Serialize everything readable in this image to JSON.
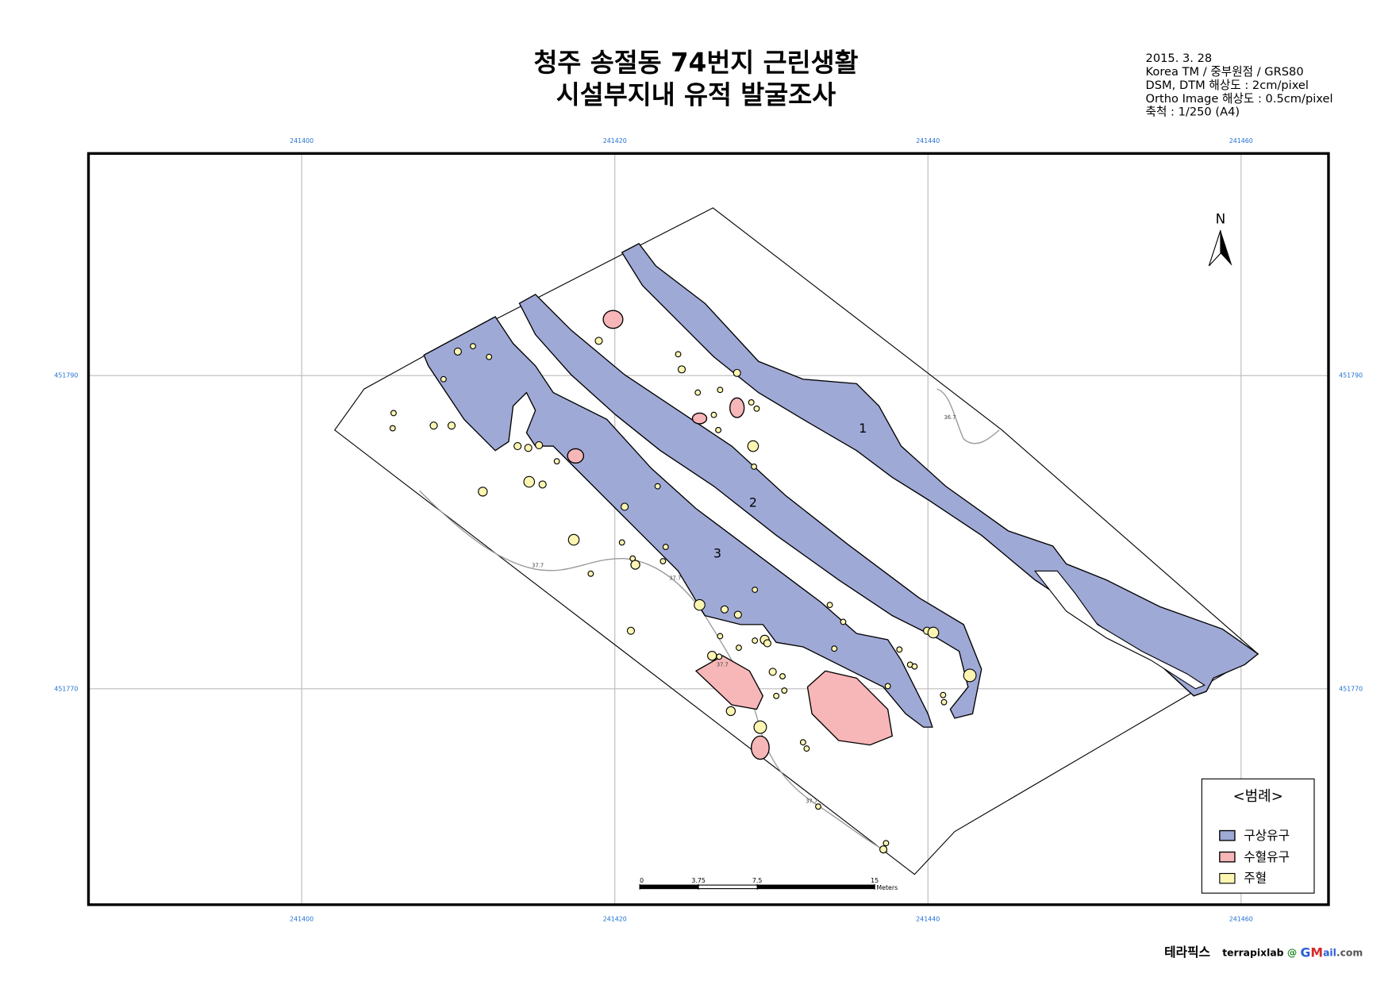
{
  "title": [
    "청주 송절동 74번지 근린생활",
    "시설부지내 유적 발굴조사"
  ],
  "info": [
    "2015. 3. 28",
    "Korea TM / 중부원점 / GRS80",
    "DSM, DTM 해상도 : 2cm/pixel",
    "Ortho Image 해상도 : 0.5cm/pixel",
    "축척 : 1/250 (A4)"
  ],
  "grid": {
    "easting": [
      241400,
      241420,
      241440,
      241460
    ],
    "northing": [
      451790,
      451770
    ]
  },
  "north": "N",
  "features": [
    "1",
    "2",
    "3"
  ],
  "contour_labels": [
    "37.7",
    "37.7",
    "37.7",
    "37.7",
    "36.7"
  ],
  "scale_bar": {
    "ticks": [
      0,
      3.75,
      7.5,
      15
    ],
    "unit": "Meters"
  },
  "legend": {
    "title": "<범례>",
    "items": [
      "구상유구",
      "수혈유구",
      "주혈"
    ]
  },
  "footer": {
    "brand": "테라픽스",
    "email": [
      "terrapixlab",
      "@",
      "G",
      "M",
      "ail",
      ".com"
    ]
  }
}
